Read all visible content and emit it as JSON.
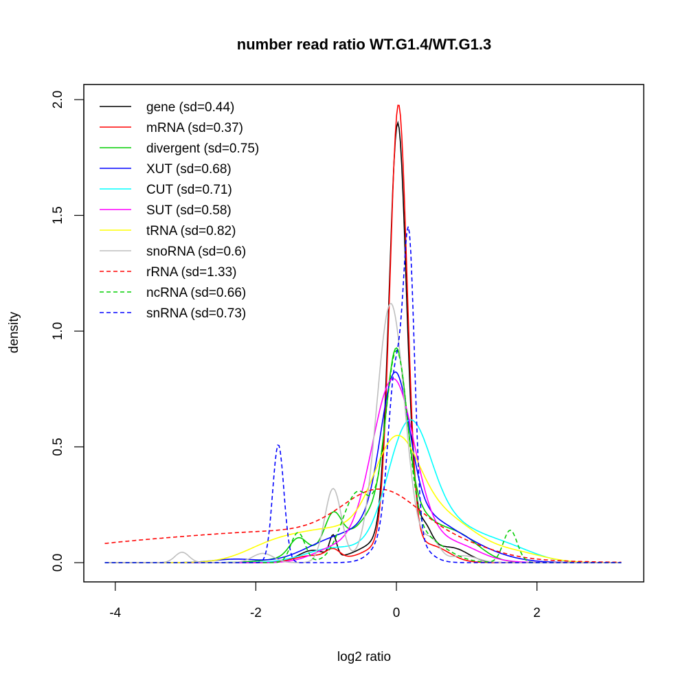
{
  "chart_data": {
    "type": "line",
    "title": "number read ratio WT.G1.4/WT.G1.3",
    "xlabel": "log2 ratio",
    "ylabel": "density",
    "xlim": [
      -4.3,
      3.5
    ],
    "ylim": [
      -0.08,
      2.06
    ],
    "xticks": [
      -4,
      -2,
      0,
      2
    ],
    "xtick_labels": [
      "-4",
      "-2",
      "0",
      "2"
    ],
    "yticks": [
      0,
      0.5,
      1,
      1.5,
      2
    ],
    "ytick_labels": [
      "0.0",
      "0.5",
      "1.0",
      "1.5",
      "2.0"
    ],
    "grid": false,
    "legend_position": "top-left",
    "x_range": [
      -4.15,
      3.2
    ],
    "series": [
      {
        "name": "gene (sd=0.44)",
        "color": "#000000",
        "dash": false,
        "peaks": [
          [
            0.02,
            1.78,
            0.12
          ],
          [
            0.02,
            0.12,
            0.45
          ],
          [
            -0.9,
            0.09,
            0.05
          ],
          [
            -1.2,
            0.05,
            0.2
          ],
          [
            0.85,
            0.04,
            0.2
          ],
          [
            0.4,
            0.08,
            0.1
          ]
        ]
      },
      {
        "name": "mRNA (sd=0.37)",
        "color": "#ff0000",
        "dash": false,
        "peaks": [
          [
            0.03,
            1.88,
            0.12
          ],
          [
            0.03,
            0.1,
            0.4
          ],
          [
            -0.9,
            0.04,
            0.1
          ],
          [
            -1.2,
            0.03,
            0.25
          ],
          [
            0.6,
            0.03,
            0.2
          ]
        ]
      },
      {
        "name": "divergent (sd=0.75)",
        "color": "#00cd00",
        "dash": false,
        "peaks": [
          [
            0.0,
            0.62,
            0.14
          ],
          [
            0.0,
            0.3,
            0.42
          ],
          [
            -0.9,
            0.14,
            0.12
          ],
          [
            -1.4,
            0.07,
            0.12
          ],
          [
            0.9,
            0.1,
            0.3
          ],
          [
            -1.0,
            0.05,
            0.5
          ]
        ]
      },
      {
        "name": "XUT (sd=0.68)",
        "color": "#0000ff",
        "dash": false,
        "peaks": [
          [
            -0.02,
            0.6,
            0.2
          ],
          [
            0.1,
            0.22,
            0.6
          ],
          [
            -1.0,
            0.06,
            0.4
          ],
          [
            -2.3,
            0.015,
            0.3
          ],
          [
            1.0,
            0.04,
            0.5
          ]
        ]
      },
      {
        "name": "CUT (sd=0.71)",
        "color": "#00ffff",
        "dash": false,
        "peaks": [
          [
            0.17,
            0.48,
            0.3
          ],
          [
            0.6,
            0.18,
            0.55
          ],
          [
            -0.9,
            0.06,
            0.4
          ],
          [
            1.6,
            0.05,
            0.4
          ]
        ]
      },
      {
        "name": "SUT (sd=0.58)",
        "color": "#ff00ff",
        "dash": false,
        "peaks": [
          [
            -0.05,
            0.72,
            0.3
          ],
          [
            0.2,
            0.08,
            0.6
          ],
          [
            -0.9,
            0.05,
            0.3
          ],
          [
            0.9,
            0.04,
            0.3
          ]
        ]
      },
      {
        "name": "tRNA (sd=0.82)",
        "color": "#ffff00",
        "dash": false,
        "peaks": [
          [
            0.0,
            0.45,
            0.33
          ],
          [
            0.7,
            0.18,
            0.45
          ],
          [
            -0.9,
            0.14,
            0.6
          ],
          [
            -1.8,
            0.05,
            0.4
          ],
          [
            1.7,
            0.04,
            0.4
          ]
        ]
      },
      {
        "name": "snoRNA (sd=0.6)",
        "color": "#bebebe",
        "dash": false,
        "peaks": [
          [
            -0.08,
            1.12,
            0.2
          ],
          [
            -0.9,
            0.32,
            0.12
          ],
          [
            -3.05,
            0.045,
            0.1
          ],
          [
            0.5,
            0.09,
            0.12
          ],
          [
            -1.9,
            0.04,
            0.15
          ],
          [
            0.95,
            0.03,
            0.2
          ]
        ]
      },
      {
        "name": "rRNA (sd=1.33)",
        "color": "#ff0000",
        "dash": true,
        "peaks": [
          [
            -0.2,
            0.22,
            0.55
          ],
          [
            -1.5,
            0.13,
            1.6
          ],
          [
            -4.2,
            0.05,
            1.2
          ],
          [
            0.9,
            0.04,
            0.5
          ]
        ]
      },
      {
        "name": "ncRNA (sd=0.66)",
        "color": "#00cd00",
        "dash": true,
        "peaks": [
          [
            0.0,
            0.82,
            0.16
          ],
          [
            -0.55,
            0.3,
            0.22
          ],
          [
            -1.4,
            0.13,
            0.1
          ],
          [
            1.62,
            0.14,
            0.1
          ],
          [
            0.3,
            0.12,
            0.35
          ]
        ]
      },
      {
        "name": "snRNA (sd=0.73)",
        "color": "#0000ff",
        "dash": true,
        "peaks": [
          [
            0.18,
            1.18,
            0.08
          ],
          [
            -0.02,
            0.62,
            0.1
          ],
          [
            0.05,
            0.2,
            0.25
          ],
          [
            -1.68,
            0.51,
            0.08
          ]
        ]
      }
    ]
  }
}
